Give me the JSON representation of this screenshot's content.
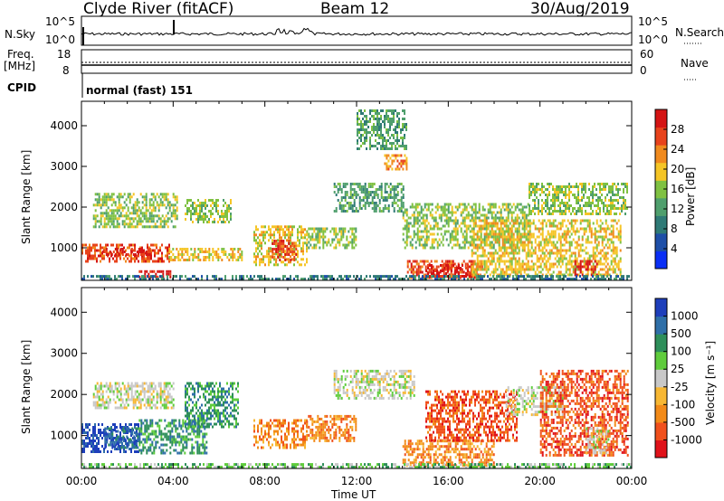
{
  "header": {
    "station": "Clyde River (fitACF)",
    "beam": "Beam 12",
    "date": "30/Aug/2019"
  },
  "strips": {
    "nsky_label": "N.Sky",
    "nsearch_label": "N.Search",
    "nsky_ticks": [
      "10^5",
      "10^0"
    ],
    "nsearch_ticks": [
      "10^5",
      "10^0"
    ],
    "freq_label": "Freq.",
    "freq_unit": "[MHz]",
    "freq_ticks": [
      "18",
      "8"
    ],
    "nave_label": "Nave",
    "nave_ticks": [
      "60",
      "0"
    ],
    "cpid_label": "CPID",
    "cpid_text": "normal (fast) 151"
  },
  "chart_data": [
    {
      "type": "heatmap",
      "name": "power",
      "ylabel": "Slant Range [km]",
      "ylim": [
        200,
        4600
      ],
      "yticks": [
        "1000",
        "2000",
        "3000",
        "4000"
      ],
      "xlim": [
        0,
        24
      ],
      "colorbar_label": "Power [dB]",
      "colorbar_ticks": [
        "28",
        "24",
        "20",
        "16",
        "12",
        "8",
        "4"
      ],
      "colors": [
        "#0a2ff5",
        "#1e4fa8",
        "#2f7a76",
        "#4f9f6d",
        "#7fc142",
        "#f5c526",
        "#f08a1e",
        "#e8431c",
        "#d41414"
      ],
      "regions": [
        {
          "t0": 0.0,
          "t1": 3.8,
          "r0": 650,
          "r1": 1100,
          "level": 7
        },
        {
          "t0": 0.9,
          "t1": 3.0,
          "r0": 800,
          "r1": 1000,
          "level": 8
        },
        {
          "t0": 2.5,
          "t1": 4.0,
          "r0": 250,
          "r1": 450,
          "level": 8
        },
        {
          "t0": 0.5,
          "t1": 4.2,
          "r0": 1500,
          "r1": 2350,
          "level": 4
        },
        {
          "t0": 3.8,
          "t1": 7.0,
          "r0": 700,
          "r1": 1000,
          "level": 5
        },
        {
          "t0": 4.5,
          "t1": 6.5,
          "r0": 1600,
          "r1": 2200,
          "level": 4
        },
        {
          "t0": 7.5,
          "t1": 9.8,
          "r0": 600,
          "r1": 1550,
          "level": 5
        },
        {
          "t0": 8.3,
          "t1": 9.4,
          "r0": 700,
          "r1": 1200,
          "level": 7
        },
        {
          "t0": 9.8,
          "t1": 12.0,
          "r0": 1000,
          "r1": 1500,
          "level": 4
        },
        {
          "t0": 11.0,
          "t1": 14.0,
          "r0": 1900,
          "r1": 2600,
          "level": 3
        },
        {
          "t0": 13.2,
          "t1": 14.2,
          "r0": 2900,
          "r1": 3300,
          "level": 6
        },
        {
          "t0": 12.0,
          "t1": 14.2,
          "r0": 3400,
          "r1": 4400,
          "level": 3
        },
        {
          "t0": 14.2,
          "t1": 17.5,
          "r0": 250,
          "r1": 700,
          "level": 7
        },
        {
          "t0": 15.0,
          "t1": 17.0,
          "r0": 300,
          "r1": 600,
          "level": 8
        },
        {
          "t0": 14.0,
          "t1": 19.5,
          "r0": 1000,
          "r1": 2100,
          "level": 4
        },
        {
          "t0": 17.0,
          "t1": 23.5,
          "r0": 300,
          "r1": 1700,
          "level": 5
        },
        {
          "t0": 19.5,
          "t1": 23.8,
          "r0": 1800,
          "r1": 2600,
          "level": 4
        },
        {
          "t0": 21.5,
          "t1": 22.5,
          "r0": 300,
          "r1": 700,
          "level": 8
        },
        {
          "t0": 0.0,
          "t1": 24.0,
          "r0": 200,
          "r1": 330,
          "level": 2
        }
      ]
    },
    {
      "type": "heatmap",
      "name": "velocity",
      "ylabel": "Slant Range [km]",
      "ylim": [
        200,
        4600
      ],
      "yticks": [
        "1000",
        "2000",
        "3000",
        "4000"
      ],
      "xlim": [
        0,
        24
      ],
      "xlabel": "Time UT",
      "xticks": [
        "00:00",
        "04:00",
        "08:00",
        "12:00",
        "16:00",
        "20:00",
        "00:00"
      ],
      "colorbar_label": "Velocity [m s⁻¹]",
      "colorbar_ticks": [
        "1000",
        "500",
        "100",
        "25",
        "-25",
        "-100",
        "-500",
        "-1000"
      ],
      "colors": [
        "#e0121a",
        "#f0501c",
        "#f28a18",
        "#f7b733",
        "#c8c8c8",
        "#5fcc3c",
        "#2e8f5a",
        "#2f6fa8",
        "#1e3fbb"
      ],
      "regions": [
        {
          "t0": 0.0,
          "t1": 2.5,
          "r0": 600,
          "r1": 1300,
          "level": 8
        },
        {
          "t0": 1.0,
          "t1": 2.5,
          "r0": 700,
          "r1": 1200,
          "level": 7
        },
        {
          "t0": 2.5,
          "t1": 5.5,
          "r0": 600,
          "r1": 1400,
          "level": 6
        },
        {
          "t0": 0.5,
          "t1": 4.0,
          "r0": 1700,
          "r1": 2300,
          "level": 4
        },
        {
          "t0": 4.5,
          "t1": 6.8,
          "r0": 1200,
          "r1": 2300,
          "level": 6
        },
        {
          "t0": 7.5,
          "t1": 9.8,
          "r0": 700,
          "r1": 1400,
          "level": 2
        },
        {
          "t0": 9.8,
          "t1": 12.0,
          "r0": 900,
          "r1": 1500,
          "level": 2
        },
        {
          "t0": 11.0,
          "t1": 14.5,
          "r0": 1900,
          "r1": 2600,
          "level": 4
        },
        {
          "t0": 14.0,
          "t1": 18.0,
          "r0": 250,
          "r1": 900,
          "level": 2
        },
        {
          "t0": 15.0,
          "t1": 19.0,
          "r0": 900,
          "r1": 2100,
          "level": 1
        },
        {
          "t0": 18.5,
          "t1": 21.0,
          "r0": 1500,
          "r1": 2200,
          "level": 4
        },
        {
          "t0": 20.0,
          "t1": 23.8,
          "r0": 500,
          "r1": 2600,
          "level": 1
        },
        {
          "t0": 22.0,
          "t1": 23.0,
          "r0": 600,
          "r1": 1200,
          "level": 4
        },
        {
          "t0": 0.0,
          "t1": 24.0,
          "r0": 200,
          "r1": 330,
          "level": 5
        }
      ]
    }
  ]
}
